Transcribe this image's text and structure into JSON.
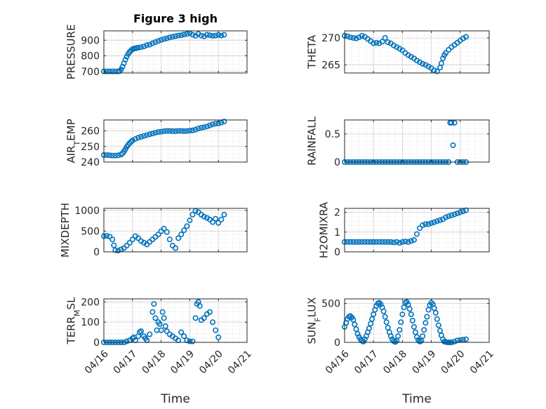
{
  "chart_data": [
    {
      "type": "scatter",
      "title": "Figure 3 high",
      "ylabel": "PRESSURE",
      "ylabel_sub": "",
      "xlim": [
        0,
        5
      ],
      "ylim": [
        690,
        960
      ],
      "yticks": [
        700,
        800,
        900
      ],
      "xticklabels": [],
      "xlabel": "",
      "series": [
        {
          "x": [
            0,
            0.1,
            0.2,
            0.3,
            0.4,
            0.5,
            0.55,
            0.6,
            0.65,
            0.7,
            0.75,
            0.8,
            0.85,
            0.9,
            0.95,
            1.0,
            1.05,
            1.1,
            1.15,
            1.2,
            1.3,
            1.4,
            1.5,
            1.6,
            1.7,
            1.8,
            1.9,
            2.0,
            2.1,
            2.2,
            2.3,
            2.4,
            2.5,
            2.6,
            2.7,
            2.8,
            2.9,
            3.0,
            3.1,
            3.2,
            3.3,
            3.4,
            3.5,
            3.6,
            3.7,
            3.8,
            3.9,
            4.0,
            4.1,
            4.2
          ],
          "y": [
            700,
            700,
            700,
            700,
            700,
            700,
            702,
            712,
            730,
            752,
            775,
            795,
            812,
            825,
            835,
            842,
            846,
            848,
            850,
            852,
            855,
            860,
            868,
            872,
            880,
            888,
            895,
            902,
            908,
            912,
            918,
            922,
            926,
            930,
            932,
            936,
            940,
            945,
            935,
            928,
            940,
            930,
            925,
            935,
            932,
            928,
            930,
            934,
            930,
            935
          ]
        }
      ]
    },
    {
      "type": "scatter",
      "title": "",
      "ylabel": "THETA",
      "ylabel_sub": "",
      "xlim": [
        0,
        5
      ],
      "ylim": [
        263.5,
        271.3
      ],
      "yticks": [
        265,
        270
      ],
      "xticklabels": [],
      "xlabel": "",
      "series": [
        {
          "x": [
            0,
            0.1,
            0.2,
            0.3,
            0.4,
            0.5,
            0.6,
            0.7,
            0.8,
            0.9,
            1.0,
            1.1,
            1.2,
            1.3,
            1.4,
            1.5,
            1.6,
            1.7,
            1.8,
            1.9,
            2.0,
            2.1,
            2.2,
            2.3,
            2.4,
            2.5,
            2.6,
            2.7,
            2.8,
            2.9,
            3.0,
            3.1,
            3.2,
            3.3,
            3.35,
            3.4,
            3.45,
            3.5,
            3.6,
            3.7,
            3.8,
            3.9,
            4.0,
            4.1,
            4.2
          ],
          "y": [
            270.4,
            270.3,
            270.1,
            270.0,
            269.9,
            270.1,
            270.4,
            270.2,
            269.8,
            269.4,
            269.0,
            269.1,
            269.0,
            269.3,
            270.0,
            269.2,
            269.0,
            268.6,
            268.3,
            268.0,
            267.7,
            267.2,
            266.8,
            266.5,
            266.2,
            265.8,
            265.5,
            265.2,
            265.0,
            264.7,
            264.4,
            264.0,
            263.8,
            264.5,
            265.3,
            266.2,
            266.8,
            267.2,
            267.8,
            268.3,
            268.7,
            269.1,
            269.5,
            269.9,
            270.2
          ]
        }
      ]
    },
    {
      "type": "scatter",
      "title": "",
      "ylabel": "AIR",
      "ylabel_sub": "T",
      "ylabel_after": "EMP",
      "xlim": [
        0,
        5
      ],
      "ylim": [
        240,
        267
      ],
      "yticks": [
        240,
        250,
        260
      ],
      "xticklabels": [],
      "xlabel": "",
      "series": [
        {
          "x": [
            0,
            0.1,
            0.2,
            0.3,
            0.4,
            0.5,
            0.6,
            0.65,
            0.7,
            0.75,
            0.8,
            0.85,
            0.9,
            0.95,
            1.0,
            1.1,
            1.2,
            1.3,
            1.4,
            1.5,
            1.6,
            1.7,
            1.8,
            1.9,
            2.0,
            2.1,
            2.2,
            2.3,
            2.4,
            2.5,
            2.6,
            2.7,
            2.8,
            2.9,
            3.0,
            3.1,
            3.2,
            3.3,
            3.4,
            3.5,
            3.6,
            3.7,
            3.8,
            3.9,
            4.0,
            4.1,
            4.2
          ],
          "y": [
            244.5,
            244.5,
            244.3,
            244.2,
            244.2,
            244.3,
            244.8,
            245.6,
            246.8,
            248.2,
            249.8,
            251.0,
            252.2,
            253.0,
            253.8,
            254.8,
            255.6,
            256.2,
            256.8,
            257.3,
            257.8,
            258.3,
            258.8,
            259.2,
            259.5,
            259.8,
            260.0,
            260.0,
            259.8,
            259.8,
            260.0,
            260.0,
            259.8,
            259.9,
            260.1,
            260.3,
            260.8,
            261.5,
            262.0,
            262.3,
            262.8,
            263.5,
            264.2,
            264.6,
            264.8,
            265.3,
            266.0
          ]
        }
      ]
    },
    {
      "type": "scatter",
      "title": "",
      "ylabel": "RAINFALL",
      "ylabel_sub": "",
      "xlim": [
        0,
        5
      ],
      "ylim": [
        0,
        0.75
      ],
      "yticks": [
        0,
        0.5
      ],
      "xticklabels": [],
      "xlabel": "",
      "series": [
        {
          "x": [
            0,
            0.1,
            0.2,
            0.3,
            0.4,
            0.5,
            0.6,
            0.7,
            0.8,
            0.9,
            1.0,
            1.1,
            1.2,
            1.3,
            1.4,
            1.5,
            1.6,
            1.7,
            1.8,
            1.9,
            2.0,
            2.1,
            2.2,
            2.3,
            2.4,
            2.5,
            2.6,
            2.7,
            2.8,
            2.9,
            3.0,
            3.1,
            3.2,
            3.3,
            3.4,
            3.5,
            3.6,
            3.65,
            3.7,
            3.75,
            3.8,
            3.9,
            4.0,
            4.1,
            4.2
          ],
          "y": [
            0,
            0,
            0,
            0,
            0,
            0,
            0,
            0,
            0,
            0,
            0,
            0,
            0,
            0,
            0,
            0,
            0,
            0,
            0,
            0,
            0,
            0,
            0,
            0,
            0,
            0,
            0,
            0,
            0,
            0,
            0,
            0,
            0,
            0,
            0,
            0,
            0,
            0.7,
            0.7,
            0.3,
            0.7,
            0,
            0,
            0,
            0
          ]
        }
      ]
    },
    {
      "type": "scatter",
      "title": "",
      "ylabel": "MIXDEPTH",
      "ylabel_sub": "",
      "xlim": [
        0,
        5
      ],
      "ylim": [
        0,
        1050
      ],
      "yticks": [
        0,
        500,
        1000
      ],
      "xticklabels": [],
      "xlabel": "",
      "series": [
        {
          "x": [
            0,
            0.1,
            0.2,
            0.3,
            0.35,
            0.4,
            0.5,
            0.6,
            0.7,
            0.8,
            0.9,
            1.0,
            1.1,
            1.2,
            1.3,
            1.4,
            1.5,
            1.6,
            1.7,
            1.8,
            1.9,
            2.0,
            2.1,
            2.2,
            2.3,
            2.4,
            2.5,
            2.6,
            2.7,
            2.8,
            2.9,
            3.0,
            3.1,
            3.2,
            3.3,
            3.4,
            3.5,
            3.6,
            3.7,
            3.8,
            3.9,
            4.0,
            4.1,
            4.2
          ],
          "y": [
            380,
            385,
            370,
            300,
            160,
            40,
            30,
            60,
            90,
            150,
            220,
            300,
            380,
            330,
            260,
            220,
            180,
            240,
            300,
            360,
            420,
            500,
            560,
            480,
            300,
            150,
            90,
            330,
            420,
            520,
            620,
            760,
            900,
            990,
            960,
            900,
            850,
            820,
            780,
            720,
            800,
            700,
            780,
            900
          ]
        }
      ]
    },
    {
      "type": "scatter",
      "title": "",
      "ylabel": "H2OMIXRA",
      "ylabel_sub": "",
      "xlim": [
        0,
        5
      ],
      "ylim": [
        0,
        2.2
      ],
      "yticks": [
        0,
        1,
        2
      ],
      "xticklabels": [],
      "xlabel": "",
      "series": [
        {
          "x": [
            0,
            0.1,
            0.2,
            0.3,
            0.4,
            0.5,
            0.6,
            0.7,
            0.8,
            0.9,
            1.0,
            1.1,
            1.2,
            1.3,
            1.4,
            1.5,
            1.6,
            1.7,
            1.8,
            1.9,
            2.0,
            2.1,
            2.2,
            2.3,
            2.4,
            2.5,
            2.6,
            2.7,
            2.8,
            2.9,
            3.0,
            3.1,
            3.2,
            3.3,
            3.4,
            3.5,
            3.6,
            3.7,
            3.8,
            3.9,
            4.0,
            4.1,
            4.2
          ],
          "y": [
            0.5,
            0.5,
            0.5,
            0.5,
            0.5,
            0.5,
            0.5,
            0.5,
            0.5,
            0.5,
            0.5,
            0.5,
            0.5,
            0.5,
            0.5,
            0.5,
            0.5,
            0.48,
            0.5,
            0.45,
            0.5,
            0.52,
            0.5,
            0.55,
            0.6,
            0.9,
            1.2,
            1.35,
            1.4,
            1.4,
            1.45,
            1.5,
            1.55,
            1.6,
            1.65,
            1.75,
            1.8,
            1.85,
            1.9,
            1.95,
            2.0,
            2.05,
            2.1
          ]
        }
      ]
    },
    {
      "type": "scatter",
      "title": "",
      "ylabel": "TERR",
      "ylabel_sub": "M",
      "ylabel_after": "SL",
      "xlim": [
        0,
        5
      ],
      "ylim": [
        0,
        215
      ],
      "yticks": [
        0,
        100,
        200
      ],
      "xticklabels": [
        "04/16",
        "04/17",
        "04/18",
        "04/19",
        "04/20",
        "04/21"
      ],
      "xlabel": "Time",
      "series": [
        {
          "x": [
            0,
            0.1,
            0.2,
            0.3,
            0.4,
            0.5,
            0.6,
            0.7,
            0.8,
            0.9,
            1.0,
            1.05,
            1.1,
            1.2,
            1.25,
            1.3,
            1.4,
            1.45,
            1.5,
            1.6,
            1.7,
            1.75,
            1.8,
            1.85,
            1.9,
            1.95,
            2.0,
            2.05,
            2.1,
            2.15,
            2.2,
            2.3,
            2.4,
            2.5,
            2.6,
            2.7,
            2.8,
            2.9,
            3.0,
            3.1,
            3.2,
            3.25,
            3.3,
            3.35,
            3.4,
            3.5,
            3.6,
            3.7,
            3.8,
            3.9,
            4.0
          ],
          "y": [
            0,
            0,
            0,
            0,
            0,
            0,
            0,
            0,
            5,
            10,
            20,
            25,
            10,
            30,
            50,
            55,
            30,
            20,
            10,
            40,
            150,
            190,
            120,
            60,
            100,
            90,
            60,
            150,
            120,
            80,
            55,
            40,
            30,
            20,
            10,
            50,
            30,
            10,
            5,
            5,
            120,
            190,
            200,
            180,
            110,
            120,
            140,
            150,
            100,
            60,
            25
          ]
        }
      ]
    },
    {
      "type": "scatter",
      "title": "",
      "ylabel": "SUN",
      "ylabel_sub": "F",
      "ylabel_after": "LUX",
      "xlim": [
        0,
        5
      ],
      "ylim": [
        0,
        560
      ],
      "yticks": [
        0,
        500
      ],
      "xticklabels": [
        "04/16",
        "04/17",
        "04/18",
        "04/19",
        "04/20",
        "04/21"
      ],
      "xlabel": "Time",
      "series": [
        {
          "x": [
            0,
            0.05,
            0.1,
            0.15,
            0.2,
            0.25,
            0.3,
            0.35,
            0.4,
            0.45,
            0.5,
            0.55,
            0.6,
            0.65,
            0.7,
            0.75,
            0.8,
            0.85,
            0.9,
            0.95,
            1.0,
            1.05,
            1.1,
            1.15,
            1.2,
            1.25,
            1.3,
            1.35,
            1.4,
            1.45,
            1.5,
            1.55,
            1.6,
            1.65,
            1.7,
            1.75,
            1.8,
            1.85,
            1.9,
            1.95,
            2.0,
            2.05,
            2.1,
            2.15,
            2.2,
            2.25,
            2.3,
            2.35,
            2.4,
            2.45,
            2.5,
            2.55,
            2.6,
            2.65,
            2.7,
            2.75,
            2.8,
            2.85,
            2.9,
            2.95,
            3.0,
            3.05,
            3.1,
            3.15,
            3.2,
            3.25,
            3.3,
            3.35,
            3.4,
            3.45,
            3.5,
            3.55,
            3.6,
            3.65,
            3.7,
            3.8,
            3.9,
            4.0,
            4.1,
            4.2
          ],
          "y": [
            200,
            250,
            300,
            330,
            340,
            320,
            290,
            230,
            170,
            110,
            70,
            40,
            20,
            10,
            40,
            80,
            130,
            180,
            240,
            300,
            360,
            420,
            470,
            500,
            510,
            490,
            450,
            400,
            330,
            260,
            190,
            130,
            80,
            40,
            15,
            5,
            20,
            80,
            160,
            260,
            360,
            450,
            510,
            520,
            490,
            430,
            360,
            280,
            200,
            130,
            70,
            30,
            10,
            20,
            80,
            160,
            250,
            330,
            420,
            480,
            510,
            490,
            440,
            380,
            300,
            220,
            150,
            90,
            40,
            10,
            5,
            0,
            0,
            0,
            0,
            10,
            25,
            30,
            35,
            40
          ]
        }
      ]
    }
  ]
}
